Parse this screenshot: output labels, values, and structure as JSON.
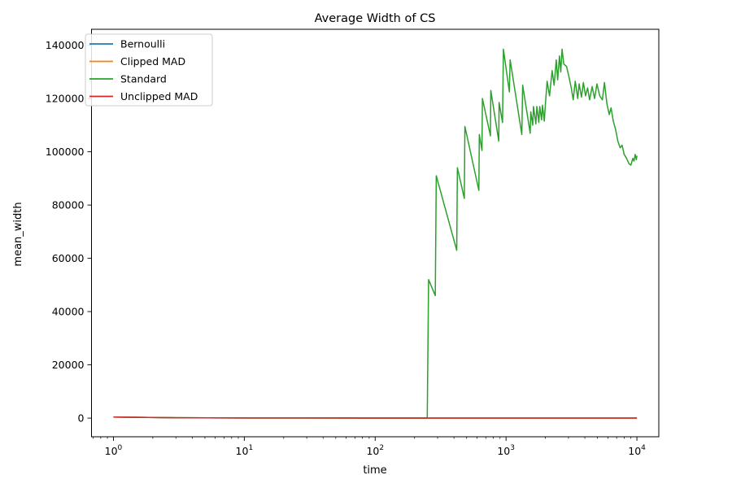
{
  "chart_data": {
    "type": "line",
    "title": "Average Width of CS",
    "xlabel": "time",
    "ylabel": "mean_width",
    "xscale": "log",
    "xlim": [
      0.68,
      14700
    ],
    "ylim": [
      -7000,
      146000
    ],
    "grid": false,
    "legend_position": "top-left",
    "x_ticks": [
      {
        "value": 1,
        "base": "10",
        "exp": "0"
      },
      {
        "value": 10,
        "base": "10",
        "exp": "1"
      },
      {
        "value": 100,
        "base": "10",
        "exp": "2"
      },
      {
        "value": 1000,
        "base": "10",
        "exp": "3"
      },
      {
        "value": 10000,
        "base": "10",
        "exp": "4"
      }
    ],
    "y_ticks": [
      {
        "value": 0,
        "label": "0"
      },
      {
        "value": 20000,
        "label": "20000"
      },
      {
        "value": 40000,
        "label": "40000"
      },
      {
        "value": 60000,
        "label": "60000"
      },
      {
        "value": 80000,
        "label": "80000"
      },
      {
        "value": 100000,
        "label": "100000"
      },
      {
        "value": 120000,
        "label": "120000"
      },
      {
        "value": 140000,
        "label": "140000"
      }
    ],
    "series": [
      {
        "name": "Bernoulli",
        "color": "#1f77b4",
        "points": [
          [
            1,
            400
          ],
          [
            3,
            150
          ],
          [
            10,
            80
          ],
          [
            100,
            40
          ],
          [
            1000,
            30
          ],
          [
            10000,
            25
          ]
        ]
      },
      {
        "name": "Clipped MAD",
        "color": "#ff7f0e",
        "points": [
          [
            1,
            400
          ],
          [
            3,
            150
          ],
          [
            10,
            80
          ],
          [
            100,
            40
          ],
          [
            1000,
            30
          ],
          [
            10000,
            25
          ]
        ]
      },
      {
        "name": "Standard",
        "color": "#2ca02c",
        "points": [
          [
            1,
            400
          ],
          [
            3,
            150
          ],
          [
            10,
            80
          ],
          [
            100,
            40
          ],
          [
            250,
            30
          ],
          [
            256,
            52000
          ],
          [
            288,
            46000
          ],
          [
            293,
            91000
          ],
          [
            420,
            63000
          ],
          [
            425,
            94000
          ],
          [
            480,
            82500
          ],
          [
            485,
            109500
          ],
          [
            620,
            85500
          ],
          [
            625,
            106500
          ],
          [
            655,
            100500
          ],
          [
            660,
            120000
          ],
          [
            760,
            106000
          ],
          [
            765,
            123000
          ],
          [
            880,
            104000
          ],
          [
            885,
            118500
          ],
          [
            940,
            111000
          ],
          [
            955,
            138500
          ],
          [
            1060,
            122500
          ],
          [
            1075,
            134500
          ],
          [
            1320,
            106500
          ],
          [
            1340,
            125000
          ],
          [
            1530,
            107000
          ],
          [
            1545,
            115000
          ],
          [
            1600,
            110000
          ],
          [
            1620,
            117000
          ],
          [
            1690,
            110500
          ],
          [
            1720,
            117000
          ],
          [
            1780,
            111000
          ],
          [
            1810,
            117000
          ],
          [
            1870,
            112000
          ],
          [
            1900,
            117500
          ],
          [
            1960,
            111500
          ],
          [
            2000,
            118000
          ],
          [
            2060,
            126500
          ],
          [
            2150,
            121000
          ],
          [
            2250,
            130500
          ],
          [
            2330,
            125000
          ],
          [
            2420,
            134500
          ],
          [
            2480,
            127000
          ],
          [
            2560,
            136000
          ],
          [
            2620,
            130000
          ],
          [
            2680,
            138500
          ],
          [
            2760,
            133000
          ],
          [
            2900,
            132000
          ],
          [
            3000,
            129000
          ],
          [
            3150,
            124000
          ],
          [
            3260,
            119500
          ],
          [
            3380,
            126500
          ],
          [
            3530,
            120000
          ],
          [
            3620,
            125500
          ],
          [
            3770,
            120500
          ],
          [
            3900,
            126000
          ],
          [
            4050,
            121000
          ],
          [
            4200,
            124000
          ],
          [
            4350,
            119500
          ],
          [
            4550,
            124500
          ],
          [
            4750,
            120000
          ],
          [
            4950,
            125500
          ],
          [
            5200,
            121000
          ],
          [
            5450,
            119500
          ],
          [
            5650,
            126000
          ],
          [
            5900,
            118000
          ],
          [
            6150,
            114000
          ],
          [
            6350,
            116500
          ],
          [
            6600,
            111500
          ],
          [
            6900,
            108000
          ],
          [
            7150,
            104000
          ],
          [
            7450,
            101500
          ],
          [
            7700,
            102500
          ],
          [
            8000,
            99000
          ],
          [
            8350,
            97500
          ],
          [
            8700,
            95500
          ],
          [
            9000,
            95000
          ],
          [
            9300,
            97500
          ],
          [
            9500,
            96500
          ],
          [
            9700,
            99000
          ],
          [
            9900,
            97000
          ],
          [
            10000,
            98500
          ]
        ]
      },
      {
        "name": "Unclipped MAD",
        "color": "#d62728",
        "points": [
          [
            1,
            400
          ],
          [
            3,
            150
          ],
          [
            10,
            80
          ],
          [
            100,
            40
          ],
          [
            1000,
            30
          ],
          [
            10000,
            25
          ]
        ]
      }
    ]
  }
}
